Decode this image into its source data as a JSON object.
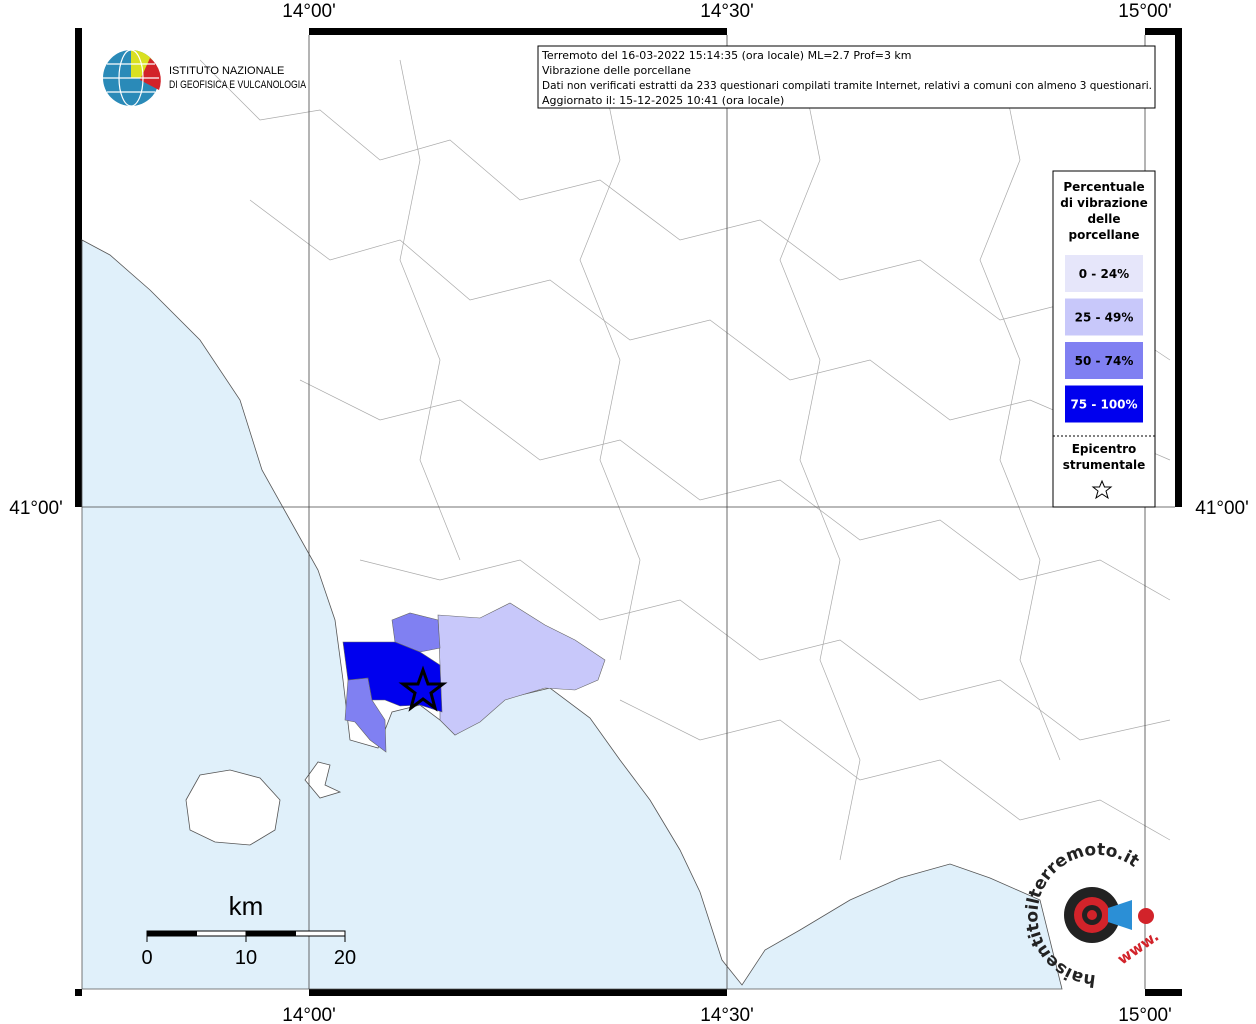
{
  "map": {
    "graticule": {
      "top": [
        "14°00'",
        "14°30'",
        "15°00'"
      ],
      "bottom": [
        "14°00'",
        "14°30'",
        "15°00'"
      ],
      "left": [
        "41°00'"
      ],
      "right": [
        "41°00'"
      ]
    },
    "info": [
      "Terremoto del 16-03-2022 15:14:35 (ora locale) ML=2.7 Prof=3 km",
      "Vibrazione delle porcellane",
      "Dati non verificati estratti da 233 questionari compilati tramite Internet, relativi a comuni con almeno 3 questionari.",
      "Aggiornato il: 15-12-2025 10:41 (ora locale)"
    ],
    "logo": [
      "ISTITUTO NAZIONALE",
      "DI GEOFISICA E VULCANOLOGIA"
    ],
    "legend": {
      "title": [
        "Percentuale",
        "di vibrazione",
        "delle",
        "porcellane"
      ],
      "classes": [
        {
          "label": "0 - 24%",
          "color": "#e6e6fa"
        },
        {
          "label": "25 - 49%",
          "color": "#c8c8fa"
        },
        {
          "label": "50 - 74%",
          "color": "#8080f2"
        },
        {
          "label": "75 - 100%",
          "color": "#0000ee"
        }
      ],
      "epicenter": [
        "Epicentro",
        "strumentale"
      ]
    },
    "scale": {
      "unit": "km",
      "ticks": [
        "0",
        "10",
        "20"
      ]
    },
    "badge": {
      "ring": "haisentitoilterremoto.it",
      "www": "www."
    }
  }
}
